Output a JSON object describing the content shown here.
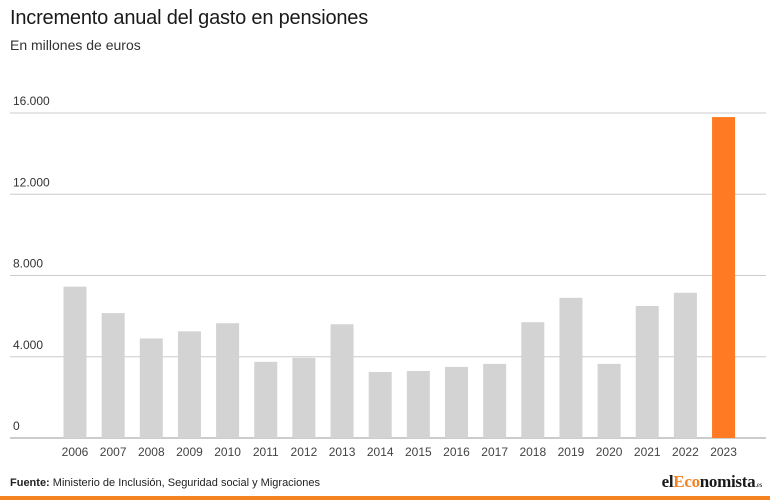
{
  "header": {
    "title": "Incremento anual del gasto en pensiones",
    "subtitle": "En millones de euros"
  },
  "footer": {
    "source_label": "Fuente:",
    "source_text": "Ministerio de Inclusión, Seguridad social y Migraciones"
  },
  "logo": {
    "part1": "el",
    "part2": "Eco",
    "part3": "nomista",
    "suffix": ".es"
  },
  "colors": {
    "bar": "#d3d3d3",
    "highlight": "#ff7a22",
    "grid": "#cccccc",
    "brand": "#f58220"
  },
  "chart_data": {
    "type": "bar",
    "categories": [
      "2006",
      "2007",
      "2008",
      "2009",
      "2010",
      "2011",
      "2012",
      "2013",
      "2014",
      "2015",
      "2016",
      "2017",
      "2018",
      "2019",
      "2020",
      "2021",
      "2022",
      "2023"
    ],
    "values": [
      7450,
      6150,
      4900,
      5250,
      5650,
      3750,
      3950,
      5600,
      3250,
      3300,
      3500,
      3650,
      5700,
      6900,
      3650,
      6500,
      7150,
      15800
    ],
    "highlight_index": 17,
    "yticks": [
      0,
      4000,
      8000,
      12000,
      16000
    ],
    "ytick_labels": [
      "0",
      "4.000",
      "8.000",
      "12.000",
      "16.000"
    ],
    "ylim": [
      0,
      16000
    ],
    "grid": true,
    "legend": "none",
    "xlabel": "",
    "ylabel": ""
  }
}
